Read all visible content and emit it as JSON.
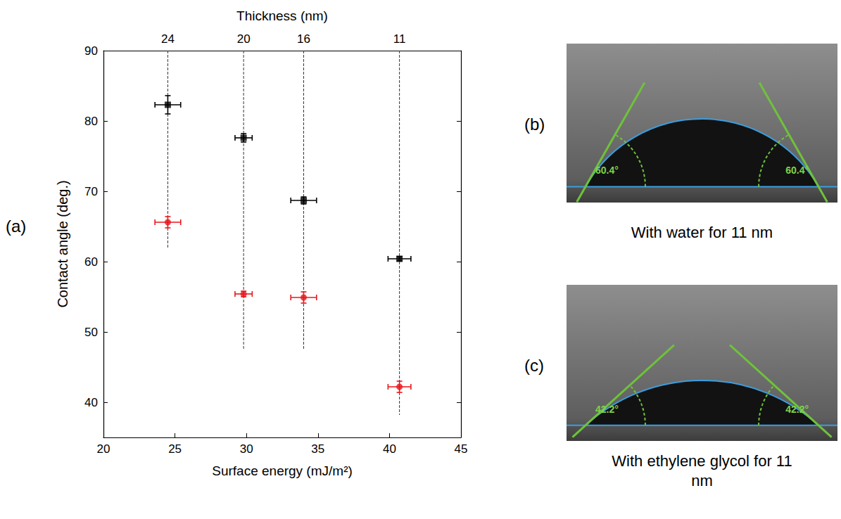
{
  "chart_data": {
    "type": "scatter",
    "panel_label": "(a)",
    "xlabel": "Surface energy (mJ/m²)",
    "ylabel": "Contact angle (deg.)",
    "xlim": [
      20,
      45
    ],
    "xticks": [
      20,
      25,
      30,
      35,
      40,
      45
    ],
    "ylim": [
      35,
      90
    ],
    "yticks": [
      40,
      50,
      60,
      70,
      80,
      90
    ],
    "grid": false,
    "series": [
      {
        "color": "#000000",
        "marker": "square",
        "x": [
          24.5,
          29.8,
          34.0,
          40.7
        ],
        "values": [
          82.3,
          77.6,
          68.7,
          60.4
        ],
        "x_err": [
          0.9,
          0.6,
          0.9,
          0.8
        ],
        "y_err": [
          1.3,
          0.6,
          0.5,
          0.3
        ]
      },
      {
        "color": "#e8161c",
        "marker": "circle",
        "x": [
          24.5,
          29.8,
          34.0,
          40.7
        ],
        "values": [
          65.6,
          55.4,
          54.9,
          42.2
        ],
        "x_err": [
          0.9,
          0.6,
          0.9,
          0.8
        ],
        "y_err": [
          0.8,
          0.4,
          0.8,
          0.8
        ]
      }
    ],
    "top_axis": {
      "title": "Thickness (nm)",
      "ticks": [
        {
          "value": 24.5,
          "label": "24"
        },
        {
          "value": 29.8,
          "label": "20"
        },
        {
          "value": 34.0,
          "label": "16"
        },
        {
          "value": 40.7,
          "label": "11"
        }
      ]
    },
    "guide_lines": [
      {
        "x": 24.5,
        "y_end": 62
      },
      {
        "x": 29.8,
        "y_end": 47.5
      },
      {
        "x": 34.0,
        "y_end": 47.5
      },
      {
        "x": 40.7,
        "y_end": 38.2
      }
    ]
  },
  "photos": [
    {
      "letter": "(b)",
      "caption": "With water for 11 nm",
      "angle": 60.4,
      "angle_label": "60.4°"
    },
    {
      "letter": "(c)",
      "caption": "With ethylene glycol for 11 nm",
      "angle": 42.2,
      "angle_label": "42.2°"
    }
  ]
}
